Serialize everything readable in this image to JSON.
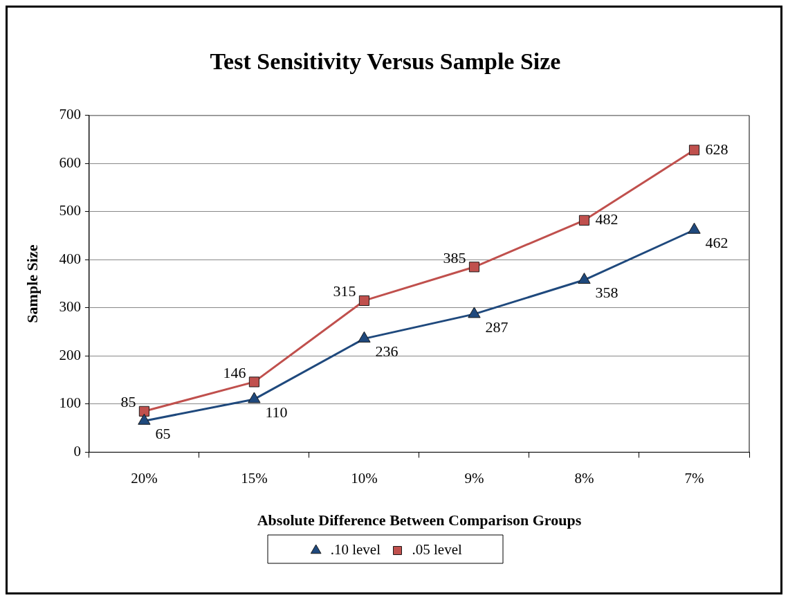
{
  "chart_data": {
    "type": "line",
    "title": "Test Sensitivity Versus Sample Size",
    "xlabel": "Absolute Difference Between Comparison Groups",
    "ylabel": "Sample Size",
    "categories": [
      "20%",
      "15%",
      "10%",
      "9%",
      "8%",
      "7%"
    ],
    "series": [
      {
        "name": ".10 level",
        "color": "#1f497d",
        "marker": "triangle",
        "values": [
          65,
          110,
          236,
          287,
          358,
          462
        ]
      },
      {
        "name": ".05 level",
        "color": "#c0504d",
        "marker": "square",
        "values": [
          85,
          146,
          315,
          385,
          482,
          628
        ]
      }
    ],
    "ylim": [
      0,
      700
    ],
    "yticks": [
      0,
      100,
      200,
      300,
      400,
      500,
      600,
      700
    ],
    "grid": "y",
    "legend": "bottom",
    "data_labels": true,
    "line_style": "solid"
  }
}
